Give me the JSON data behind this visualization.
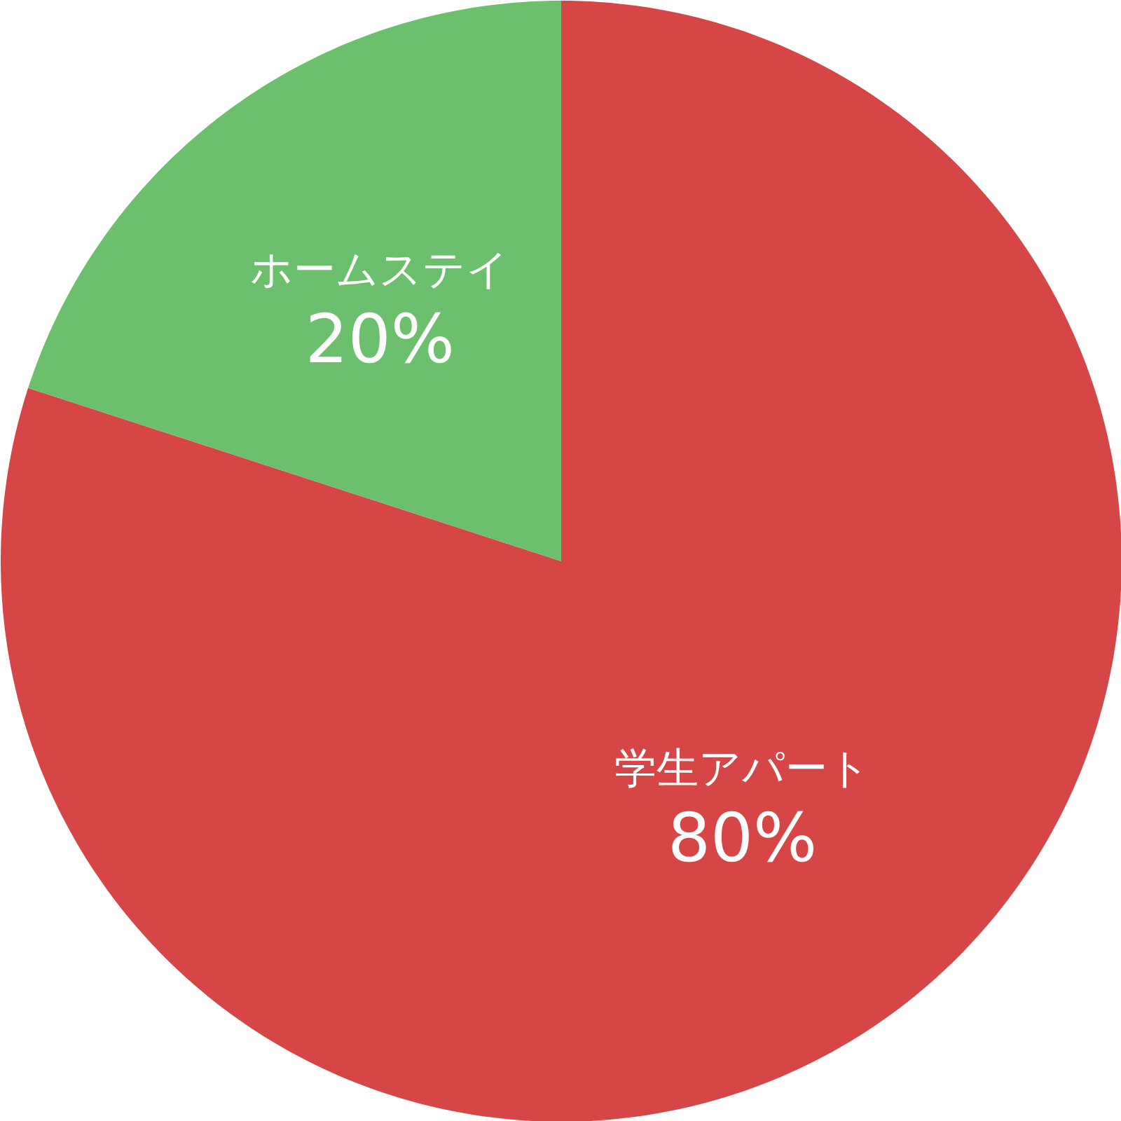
{
  "chart_data": {
    "type": "pie",
    "categories": [
      "学生アパート",
      "ホームステイ"
    ],
    "values": [
      80,
      20
    ],
    "colors": [
      "#d64646",
      "#6cbf6c"
    ],
    "value_labels": [
      "80%",
      "20%"
    ]
  }
}
